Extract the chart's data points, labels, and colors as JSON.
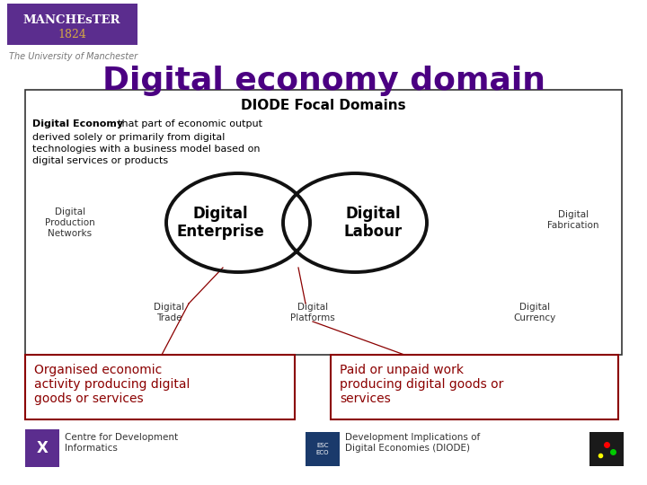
{
  "title": "Digital economy domain",
  "title_color": "#4b0082",
  "title_fontsize": 26,
  "bg_color": "#ffffff",
  "box_title": "DIODE Focal Domains",
  "box_desc_bold": "Digital Economy",
  "box_desc_rest": ": that part of economic output\nderived solely or primarily from digital\ntechnologies with a business model based on\ndigital services or products",
  "ellipse_left_label": "Digital\nEnterprise",
  "ellipse_right_label": "Digital\nLabour",
  "ellipse_color": "#111111",
  "ellipse_lw": 2.8,
  "box1_text": "Organised economic\nactivity producing digital\ngoods or services",
  "box2_text": "Paid or unpaid work\nproducing digital goods or\nservices",
  "box_text_color": "#8b0000",
  "box_border_color": "#8b0000",
  "footer_left_text": "Centre for Development\nInformatics",
  "footer_right_text": "Development Implications of\nDigital Economies (DIODE)",
  "manchester_bg": "#5b2d8e",
  "univ_text": "The University of Manchester",
  "label_color": "#333333",
  "label_fontsize": 7.5,
  "line_color": "#8b0000"
}
